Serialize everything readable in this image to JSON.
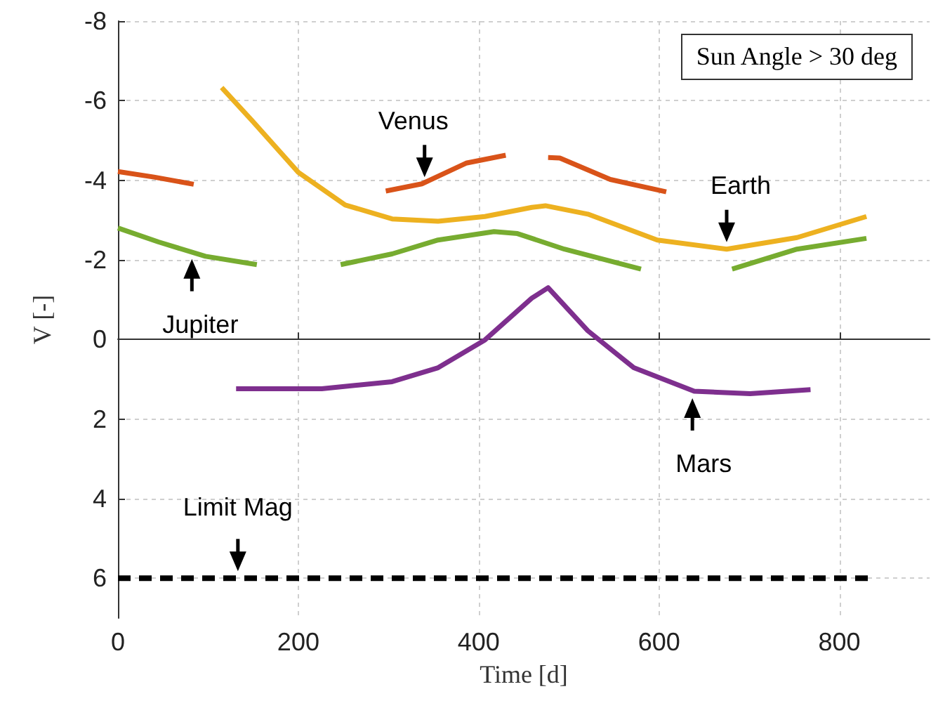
{
  "chart_data": {
    "type": "line",
    "xlabel": "Time [d]",
    "ylabel": "V [-]",
    "xlim": [
      0,
      900
    ],
    "xticks": [
      0,
      200,
      400,
      600,
      800
    ],
    "ylim": [
      7,
      -8
    ],
    "yticks": [
      -8,
      -6,
      -4,
      -2,
      0,
      2,
      4,
      6
    ],
    "grid": true,
    "marker": "none",
    "line_style": "solid",
    "series": [
      {
        "color": "#d95319",
        "x": [
          0,
          40,
          84,
          190,
          297,
          337,
          386,
          430,
          450,
          477,
          490,
          546,
          608
        ],
        "values": [
          -4.22,
          -4.08,
          -3.9,
          null,
          -3.73,
          -3.91,
          -4.43,
          -4.63,
          null,
          -4.57,
          -4.56,
          -4.02,
          -3.71
        ]
      },
      {
        "color": "#edb120",
        "x": [
          115,
          149,
          200,
          252,
          304,
          355,
          407,
          459,
          474,
          521,
          598,
          675,
          753,
          830
        ],
        "values": [
          -6.33,
          -5.49,
          -4.2,
          -3.38,
          -3.03,
          -2.97,
          -3.09,
          -3.32,
          -3.36,
          -3.15,
          -2.5,
          -2.27,
          -2.56,
          -3.09
        ]
      },
      {
        "color": "#77ac30",
        "x": [
          0,
          45,
          97,
          154,
          200,
          247,
          304,
          355,
          417,
          443,
          495,
          580,
          630,
          681,
          753,
          830
        ],
        "values": [
          -2.8,
          -2.45,
          -2.09,
          -1.88,
          null,
          -1.88,
          -2.15,
          -2.5,
          -2.71,
          -2.66,
          -2.27,
          -1.77,
          null,
          -1.77,
          -2.27,
          -2.54
        ]
      },
      {
        "color": "#7e2f8e",
        "x": [
          131,
          226,
          304,
          355,
          407,
          459,
          477,
          521,
          572,
          639,
          701,
          768
        ],
        "values": [
          1.24,
          1.24,
          1.06,
          0.71,
          0.01,
          -1.04,
          -1.3,
          -0.22,
          0.71,
          1.3,
          1.36,
          1.26
        ]
      },
      {
        "color": "#000000",
        "line_style": "dashed",
        "x": [
          0,
          835
        ],
        "values": [
          6,
          6
        ]
      }
    ],
    "annotations": [
      {
        "text": "Venus",
        "x": 340,
        "y": -3.9
      },
      {
        "text": "Earth",
        "x": 675,
        "y": -2.27
      },
      {
        "text": "Jupiter",
        "x": 82,
        "y": -2.2
      },
      {
        "text": "Mars",
        "x": 637,
        "y": 1.3
      },
      {
        "text": "Limit Mag",
        "x": 133,
        "y": 6
      },
      "Sun Angle > 30 deg"
    ]
  }
}
